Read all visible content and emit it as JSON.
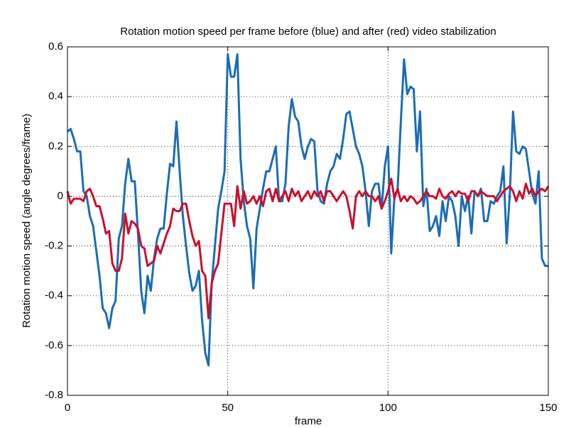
{
  "chart_data": {
    "type": "line",
    "title": "Rotation motion speed per frame before (blue) and after (red) video stabilization",
    "xlabel": "frame",
    "ylabel": "Rotation motion speed (angle degrees/frame)",
    "x": [
      0,
      1,
      2,
      3,
      4,
      5,
      6,
      7,
      8,
      9,
      10,
      11,
      12,
      13,
      14,
      15,
      16,
      17,
      18,
      19,
      20,
      21,
      22,
      23,
      24,
      25,
      26,
      27,
      28,
      29,
      30,
      31,
      32,
      33,
      34,
      35,
      36,
      37,
      38,
      39,
      40,
      41,
      42,
      43,
      44,
      45,
      46,
      47,
      48,
      49,
      50,
      51,
      52,
      53,
      54,
      55,
      56,
      57,
      58,
      59,
      60,
      61,
      62,
      63,
      64,
      65,
      66,
      67,
      68,
      69,
      70,
      71,
      72,
      73,
      74,
      75,
      76,
      77,
      78,
      79,
      80,
      81,
      82,
      83,
      84,
      85,
      86,
      87,
      88,
      89,
      90,
      91,
      92,
      93,
      94,
      95,
      96,
      97,
      98,
      99,
      100,
      101,
      102,
      103,
      104,
      105,
      106,
      107,
      108,
      109,
      110,
      111,
      112,
      113,
      114,
      115,
      116,
      117,
      118,
      119,
      120,
      121,
      122,
      123,
      124,
      125,
      126,
      127,
      128,
      129,
      130,
      131,
      132,
      133,
      134,
      135,
      136,
      137,
      138,
      139,
      140,
      141,
      142,
      143,
      144,
      145,
      146,
      147,
      148,
      149,
      150
    ],
    "series": [
      {
        "name": "before",
        "color": "#1a6db5",
        "values": [
          0.26,
          0.27,
          0.23,
          0.18,
          0.18,
          0.02,
          0.0,
          -0.08,
          -0.12,
          -0.22,
          -0.32,
          -0.45,
          -0.47,
          -0.53,
          -0.45,
          -0.42,
          -0.17,
          -0.12,
          0.05,
          0.15,
          0.06,
          0.06,
          -0.15,
          -0.38,
          -0.47,
          -0.32,
          -0.38,
          -0.25,
          -0.17,
          -0.13,
          -0.13,
          0.01,
          0.13,
          0.12,
          0.3,
          0.1,
          -0.08,
          -0.2,
          -0.31,
          -0.38,
          -0.36,
          -0.3,
          -0.5,
          -0.63,
          -0.68,
          -0.35,
          -0.2,
          -0.05,
          0.02,
          0.1,
          0.57,
          0.48,
          0.48,
          0.57,
          0.15,
          -0.02,
          -0.12,
          -0.17,
          -0.37,
          -0.13,
          -0.05,
          0.03,
          0.1,
          0.1,
          0.15,
          0.2,
          -0.02,
          -0.02,
          0.05,
          0.28,
          0.39,
          0.32,
          0.3,
          0.2,
          0.15,
          0.2,
          0.23,
          0.22,
          0.02,
          -0.02,
          -0.03,
          0.05,
          0.1,
          0.12,
          0.17,
          0.15,
          0.23,
          0.33,
          0.34,
          0.27,
          0.2,
          0.17,
          0.12,
          0.02,
          -0.12,
          0.02,
          0.05,
          0.05,
          -0.05,
          0.12,
          0.2,
          -0.23,
          0.0,
          0.03,
          0.3,
          0.55,
          0.41,
          0.44,
          0.43,
          0.18,
          0.34,
          -0.04,
          0.03,
          -0.14,
          -0.12,
          -0.08,
          -0.16,
          -0.02,
          -0.1,
          0.0,
          -0.02,
          -0.08,
          -0.2,
          0.0,
          -0.06,
          0.0,
          -0.15,
          0.02,
          0.0,
          0.03,
          -0.1,
          -0.1,
          -0.02,
          -0.03,
          0.0,
          0.02,
          0.12,
          -0.19,
          0.01,
          0.34,
          0.18,
          0.17,
          0.2,
          0.19,
          0.1,
          0.01,
          -0.03,
          0.1,
          -0.25,
          -0.28,
          -0.28
        ]
      },
      {
        "name": "after",
        "color": "#c8102e",
        "values": [
          0.02,
          -0.03,
          -0.01,
          -0.01,
          -0.01,
          -0.02,
          0.02,
          0.03,
          0.0,
          -0.04,
          -0.04,
          -0.09,
          -0.15,
          -0.14,
          -0.27,
          -0.3,
          -0.3,
          -0.25,
          -0.07,
          -0.15,
          -0.1,
          -0.11,
          -0.13,
          -0.2,
          -0.21,
          -0.28,
          -0.27,
          -0.26,
          -0.2,
          -0.23,
          -0.19,
          -0.15,
          -0.12,
          -0.05,
          -0.06,
          -0.06,
          -0.03,
          -0.03,
          -0.1,
          -0.16,
          -0.2,
          -0.18,
          -0.3,
          -0.32,
          -0.49,
          -0.35,
          -0.3,
          -0.27,
          -0.15,
          -0.03,
          -0.03,
          -0.03,
          -0.12,
          0.04,
          -0.05,
          0.02,
          -0.03,
          -0.02,
          0.0,
          -0.03,
          0.0,
          -0.04,
          0.02,
          0.03,
          -0.02,
          0.03,
          -0.02,
          0.0,
          0.02,
          -0.02,
          0.03,
          0.0,
          0.02,
          -0.02,
          0.0,
          0.02,
          -0.01,
          0.02,
          0.0,
          0.02,
          -0.02,
          0.02,
          0.02,
          0.0,
          -0.02,
          0.0,
          0.02,
          0.0,
          -0.06,
          -0.13,
          0.0,
          0.02,
          0.0,
          0.02,
          0.0,
          0.0,
          -0.02,
          0.0,
          -0.05,
          -0.02,
          0.02,
          0.07,
          -0.01,
          0.03,
          -0.02,
          0.0,
          -0.02,
          0.0,
          -0.01,
          -0.03,
          -0.02,
          0.0,
          0.02,
          0.0,
          0.0,
          -0.01,
          0.03,
          0.0,
          -0.01,
          0.01,
          0.02,
          0.0,
          0.02,
          0.01,
          0.01,
          -0.02,
          0.02,
          0.02,
          0.0,
          0.02,
          0.01,
          0.0,
          0.0,
          0.0,
          -0.02,
          0.0,
          0.02,
          0.03,
          0.04,
          0.02,
          -0.02,
          0.02,
          -0.01,
          0.05,
          0.01,
          0.03,
          0.0,
          0.02,
          0.03,
          0.02,
          0.04
        ]
      }
    ],
    "xlim": [
      0,
      150
    ],
    "xticks": [
      0,
      50,
      100,
      150
    ],
    "ylim": [
      -0.8,
      0.6
    ],
    "yticks": [
      -0.8,
      -0.6,
      -0.4,
      -0.2,
      0,
      0.2,
      0.4,
      0.6
    ],
    "grid": true
  }
}
